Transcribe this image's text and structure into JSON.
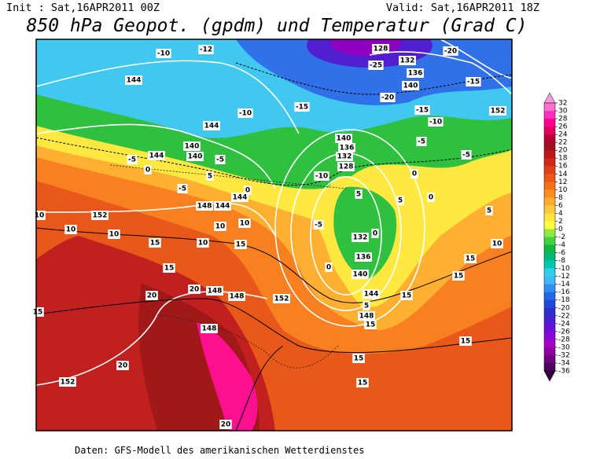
{
  "header": {
    "init": "Init : Sat,16APR2011 00Z",
    "valid": "Valid: Sat,16APR2011 18Z",
    "title": "850 hPa Geopot. (gpdm) und Temperatur (Grad C)"
  },
  "colorbar": {
    "ticks": [
      32,
      30,
      28,
      26,
      24,
      22,
      20,
      18,
      16,
      14,
      12,
      10,
      8,
      6,
      4,
      2,
      0,
      -2,
      -4,
      -6,
      -8,
      -10,
      -12,
      -14,
      -16,
      -18,
      -20,
      -22,
      -24,
      -26,
      -28,
      -30,
      -32,
      -34,
      -36
    ],
    "colors": [
      "#ff99dd",
      "#ff70cc",
      "#ff30c0",
      "#ff0090",
      "#e00060",
      "#b80030",
      "#a01020",
      "#b81818",
      "#d02818",
      "#e04018",
      "#ec5818",
      "#f47018",
      "#fa8c20",
      "#ffaa30",
      "#ffc840",
      "#ffe440",
      "#ffff40",
      "#90e840",
      "#40d040",
      "#10b840",
      "#00b878",
      "#00c8b0",
      "#30d0e8",
      "#40b8f8",
      "#3090f0",
      "#2468e8",
      "#2048d8",
      "#3030c8",
      "#4820d0",
      "#6810d8",
      "#8808d8",
      "#a800c8",
      "#9000a0",
      "#700080",
      "#500060",
      "#300040"
    ]
  },
  "map": {
    "labels": [
      -10,
      -12,
      144,
      -10,
      144,
      140,
      140,
      -5,
      144,
      -5,
      0,
      5,
      -5,
      0,
      144,
      148,
      144,
      152,
      10,
      10,
      10,
      10,
      10,
      10,
      15,
      15,
      15,
      20,
      20,
      148,
      148,
      152,
      15,
      148,
      20,
      152,
      20,
      128,
      -25,
      132,
      136,
      -20,
      140,
      -20,
      -15,
      -15,
      -15,
      152,
      -10,
      -5,
      -5,
      140,
      136,
      132,
      128,
      -10,
      0,
      5,
      5,
      0,
      5,
      -5,
      0,
      132,
      10,
      136,
      15,
      0,
      140,
      15,
      144,
      15,
      5,
      148,
      15,
      15,
      15,
      15
    ]
  },
  "footer": "Daten: GFS-Modell des amerikanischen Wetterdienstes"
}
